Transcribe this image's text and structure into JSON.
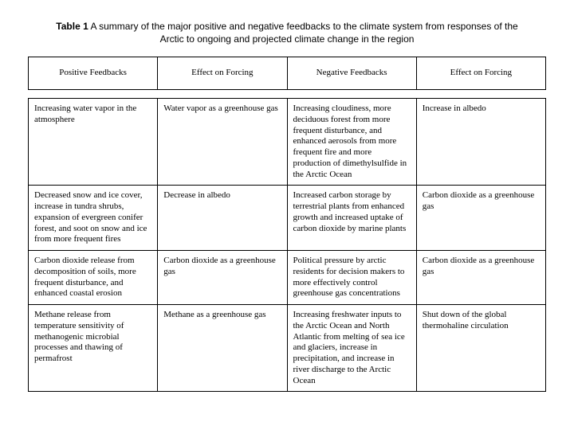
{
  "caption_label": "Table 1",
  "caption_text": "  A summary of the major positive and negative feedbacks to the climate system from responses of the Arctic to ongoing and projected climate change in the region",
  "columns": [
    "Positive Feedbacks",
    "Effect on Forcing",
    "Negative Feedbacks",
    "Effect on Forcing"
  ],
  "rows": [
    {
      "c0": "Increasing water vapor in the atmosphere",
      "c1": "Water vapor as a greenhouse gas",
      "c2": "Increasing cloudiness, more deciduous forest from more frequent disturbance, and enhanced aerosols from more frequent fire and more production of dimethylsulfide in the Arctic Ocean",
      "c3": "Increase in albedo"
    },
    {
      "c0": "Decreased snow and ice cover, increase in tundra shrubs, expansion of evergreen conifer forest, and soot on snow and ice from more frequent fires",
      "c1": "Decrease in albedo",
      "c2": "Increased carbon storage by terrestrial plants from enhanced growth and increased uptake of carbon dioxide by marine plants",
      "c3": "Carbon dioxide as a greenhouse gas"
    },
    {
      "c0": "Carbon dioxide release from decomposition of soils, more frequent disturbance, and enhanced coastal erosion",
      "c1": "Carbon dioxide as a greenhouse gas",
      "c2": "Political pressure by arctic residents for decision makers to more effectively control greenhouse gas concentrations",
      "c3": "Carbon dioxide as a greenhouse gas"
    },
    {
      "c0": "Methane release from temperature sensitivity of methanogenic microbial processes and thawing of permafrost",
      "c1": "Methane as a greenhouse gas",
      "c2": "Increasing freshwater inputs to the Arctic Ocean and North Atlantic from melting of sea ice and glaciers, increase in precipitation, and increase in river discharge to the Arctic Ocean",
      "c3": "Shut down of the global thermohaline circulation"
    }
  ]
}
